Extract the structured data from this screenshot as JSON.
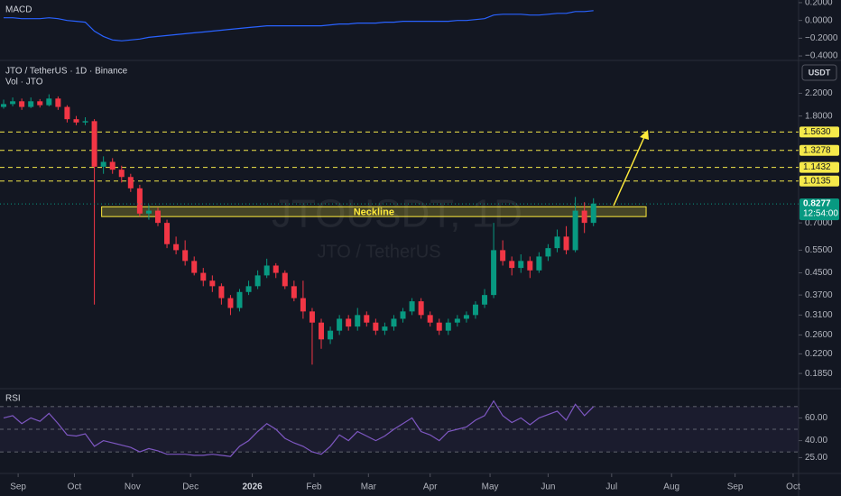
{
  "chart_data": {
    "type": "candlestick",
    "title": "JTO / TetherUS · 1D · Binance",
    "volume_label": "Vol · JTO",
    "watermark": "JTOUSDT, 1D",
    "watermark_sub": "JTO / TetherUS",
    "currency": "USDT",
    "log_scale": true,
    "up_color": "#089981",
    "down_color": "#f23645",
    "xlim": [
      -10,
      430
    ],
    "xticks": [
      {
        "value": 0,
        "label": "Sep"
      },
      {
        "value": 31,
        "label": "Oct"
      },
      {
        "value": 63,
        "label": "Nov"
      },
      {
        "value": 95,
        "label": "Dec"
      },
      {
        "value": 129,
        "label": "2026"
      },
      {
        "value": 163,
        "label": "Feb"
      },
      {
        "value": 193,
        "label": "Mar"
      },
      {
        "value": 227,
        "label": "Apr"
      },
      {
        "value": 260,
        "label": "May"
      },
      {
        "value": 292,
        "label": "Jun"
      },
      {
        "value": 327,
        "label": "Jul"
      },
      {
        "value": 360,
        "label": "Aug"
      },
      {
        "value": 395,
        "label": "Sep"
      },
      {
        "value": 427,
        "label": "Oct"
      }
    ],
    "ylim": [
      0.163,
      2.41
    ],
    "yticks": [
      {
        "value": 2.2,
        "label": "2.2000"
      },
      {
        "value": 1.8,
        "label": "1.8000"
      },
      {
        "value": 0.7,
        "label": "0.7000"
      },
      {
        "value": 0.55,
        "label": "0.5500"
      },
      {
        "value": 0.45,
        "label": "0.4500"
      },
      {
        "value": 0.37,
        "label": "0.3700"
      },
      {
        "value": 0.31,
        "label": "0.3100"
      },
      {
        "value": 0.26,
        "label": "0.2600"
      },
      {
        "value": 0.22,
        "label": "0.2200"
      },
      {
        "value": 0.185,
        "label": "0.1850"
      }
    ],
    "x": [
      -8,
      -3,
      2,
      7,
      12,
      17,
      22,
      27,
      32,
      37,
      42,
      47,
      52,
      57,
      62,
      67,
      72,
      77,
      82,
      87,
      92,
      97,
      102,
      107,
      112,
      117,
      122,
      127,
      132,
      137,
      142,
      147,
      152,
      157,
      162,
      167,
      172,
      177,
      182,
      187,
      192,
      197,
      202,
      207,
      212,
      217,
      222,
      227,
      232,
      237,
      242,
      247,
      252,
      257,
      262,
      267,
      272,
      277,
      282,
      287,
      292,
      297,
      302,
      307,
      312,
      317
    ],
    "candles": [
      [
        1.95,
        2.08,
        1.92,
        2.0
      ],
      [
        2.0,
        2.12,
        1.96,
        2.05
      ],
      [
        2.05,
        2.1,
        1.9,
        1.95
      ],
      [
        1.95,
        2.12,
        1.93,
        2.05
      ],
      [
        2.05,
        2.09,
        1.94,
        1.98
      ],
      [
        1.98,
        2.18,
        1.96,
        2.1
      ],
      [
        2.1,
        2.14,
        1.9,
        1.95
      ],
      [
        1.95,
        1.98,
        1.7,
        1.75
      ],
      [
        1.75,
        1.8,
        1.66,
        1.7
      ],
      [
        1.7,
        1.78,
        1.66,
        1.72
      ],
      [
        1.72,
        1.75,
        0.34,
        1.15
      ],
      [
        1.15,
        1.26,
        1.08,
        1.2
      ],
      [
        1.2,
        1.24,
        1.08,
        1.12
      ],
      [
        1.12,
        1.16,
        1.0,
        1.05
      ],
      [
        1.05,
        1.08,
        0.92,
        0.95
      ],
      [
        0.95,
        0.98,
        0.74,
        0.76
      ],
      [
        0.76,
        0.82,
        0.72,
        0.78
      ],
      [
        0.78,
        0.8,
        0.68,
        0.7
      ],
      [
        0.7,
        0.72,
        0.56,
        0.58
      ],
      [
        0.58,
        0.62,
        0.53,
        0.55
      ],
      [
        0.55,
        0.6,
        0.48,
        0.5
      ],
      [
        0.5,
        0.52,
        0.44,
        0.45
      ],
      [
        0.45,
        0.47,
        0.4,
        0.42
      ],
      [
        0.42,
        0.44,
        0.38,
        0.4
      ],
      [
        0.4,
        0.41,
        0.34,
        0.36
      ],
      [
        0.36,
        0.37,
        0.31,
        0.33
      ],
      [
        0.33,
        0.39,
        0.32,
        0.38
      ],
      [
        0.38,
        0.42,
        0.37,
        0.4
      ],
      [
        0.4,
        0.46,
        0.39,
        0.44
      ],
      [
        0.44,
        0.51,
        0.43,
        0.48
      ],
      [
        0.48,
        0.49,
        0.43,
        0.45
      ],
      [
        0.45,
        0.46,
        0.39,
        0.4
      ],
      [
        0.4,
        0.42,
        0.35,
        0.36
      ],
      [
        0.36,
        0.42,
        0.3,
        0.32
      ],
      [
        0.32,
        0.33,
        0.2,
        0.29
      ],
      [
        0.29,
        0.3,
        0.23,
        0.25
      ],
      [
        0.25,
        0.28,
        0.24,
        0.27
      ],
      [
        0.27,
        0.31,
        0.26,
        0.3
      ],
      [
        0.3,
        0.31,
        0.27,
        0.28
      ],
      [
        0.28,
        0.33,
        0.27,
        0.31
      ],
      [
        0.31,
        0.32,
        0.28,
        0.29
      ],
      [
        0.29,
        0.3,
        0.26,
        0.27
      ],
      [
        0.27,
        0.29,
        0.26,
        0.28
      ],
      [
        0.28,
        0.31,
        0.27,
        0.3
      ],
      [
        0.3,
        0.33,
        0.29,
        0.32
      ],
      [
        0.32,
        0.36,
        0.31,
        0.35
      ],
      [
        0.35,
        0.36,
        0.3,
        0.31
      ],
      [
        0.31,
        0.32,
        0.28,
        0.29
      ],
      [
        0.29,
        0.3,
        0.26,
        0.27
      ],
      [
        0.27,
        0.3,
        0.26,
        0.29
      ],
      [
        0.29,
        0.31,
        0.28,
        0.3
      ],
      [
        0.3,
        0.32,
        0.29,
        0.31
      ],
      [
        0.31,
        0.35,
        0.3,
        0.34
      ],
      [
        0.34,
        0.39,
        0.33,
        0.37
      ],
      [
        0.37,
        0.7,
        0.36,
        0.55
      ],
      [
        0.55,
        0.6,
        0.48,
        0.5
      ],
      [
        0.5,
        0.52,
        0.44,
        0.47
      ],
      [
        0.47,
        0.53,
        0.45,
        0.5
      ],
      [
        0.5,
        0.52,
        0.43,
        0.46
      ],
      [
        0.46,
        0.54,
        0.45,
        0.52
      ],
      [
        0.52,
        0.58,
        0.5,
        0.56
      ],
      [
        0.56,
        0.66,
        0.54,
        0.62
      ],
      [
        0.62,
        0.68,
        0.53,
        0.55
      ],
      [
        0.55,
        0.88,
        0.54,
        0.78
      ],
      [
        0.78,
        0.84,
        0.64,
        0.7
      ],
      [
        0.7,
        0.87,
        0.68,
        0.83
      ]
    ],
    "levels": [
      {
        "value": 1.563,
        "label": "1.5630"
      },
      {
        "value": 1.3278,
        "label": "1.3278"
      },
      {
        "value": 1.1432,
        "label": "1.1432"
      },
      {
        "value": 1.0135,
        "label": "1.0135"
      }
    ],
    "level_color": "#f5e94a",
    "price": {
      "value": 0.8277,
      "label": "0.8277"
    },
    "countdown": "12:54:00",
    "neckline": {
      "label": "Neckline",
      "top": 0.807,
      "bottom": 0.74,
      "x": [
        46,
        346
      ],
      "color": "#ffeb3b"
    },
    "macd": {
      "title": "MACD",
      "color": "#2962ff",
      "ylim": [
        -0.44,
        0.23
      ],
      "yticks": [
        {
          "value": 0.2,
          "label": "0.2000"
        },
        {
          "value": 0,
          "label": "0.0000"
        },
        {
          "value": -0.2,
          "label": "−0.2000"
        },
        {
          "value": -0.4,
          "label": "−0.4000"
        }
      ],
      "values": [
        0.03,
        0.03,
        0.02,
        0.02,
        0.02,
        0.03,
        0.02,
        0.0,
        -0.01,
        -0.02,
        -0.12,
        -0.18,
        -0.22,
        -0.23,
        -0.22,
        -0.21,
        -0.19,
        -0.18,
        -0.17,
        -0.16,
        -0.15,
        -0.14,
        -0.13,
        -0.12,
        -0.11,
        -0.1,
        -0.09,
        -0.08,
        -0.07,
        -0.06,
        -0.06,
        -0.06,
        -0.06,
        -0.06,
        -0.06,
        -0.06,
        -0.05,
        -0.04,
        -0.04,
        -0.03,
        -0.03,
        -0.03,
        -0.02,
        -0.02,
        -0.01,
        -0.01,
        -0.01,
        -0.01,
        -0.01,
        -0.01,
        0.0,
        0.0,
        0.01,
        0.02,
        0.06,
        0.07,
        0.07,
        0.07,
        0.06,
        0.06,
        0.07,
        0.08,
        0.08,
        0.1,
        0.1,
        0.11
      ]
    },
    "rsi": {
      "title": "RSI",
      "color": "#7e57c2",
      "ylim": [
        15,
        85
      ],
      "levels": [
        70,
        50,
        30
      ],
      "yticks": [
        {
          "value": 60,
          "label": "60.00"
        },
        {
          "value": 40,
          "label": "40.00"
        },
        {
          "value": 25,
          "label": "25.00"
        }
      ],
      "values": [
        60,
        62,
        55,
        60,
        57,
        64,
        55,
        45,
        44,
        46,
        35,
        40,
        38,
        36,
        34,
        30,
        33,
        31,
        28,
        28,
        28,
        27,
        27,
        28,
        27,
        26,
        35,
        40,
        48,
        55,
        50,
        42,
        38,
        35,
        30,
        28,
        35,
        45,
        40,
        48,
        44,
        40,
        44,
        50,
        55,
        60,
        48,
        45,
        40,
        48,
        50,
        52,
        58,
        62,
        75,
        62,
        56,
        60,
        54,
        60,
        63,
        66,
        58,
        72,
        62,
        70
      ]
    }
  }
}
